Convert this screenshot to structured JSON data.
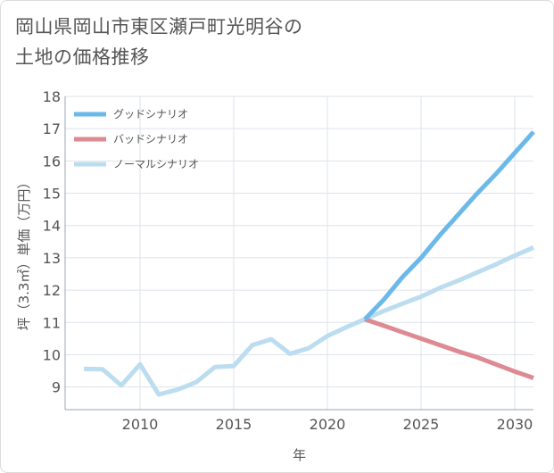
{
  "chart_data": {
    "type": "line",
    "title": "岡山県岡山市東区瀬戸町光明谷の土地の価格推移",
    "xlabel": "年",
    "ylabel": "坪（3.3㎡）単価（万円）",
    "xlim": [
      2006,
      2031
    ],
    "ylim": [
      8.3,
      18
    ],
    "xticks": [
      2010,
      2015,
      2020,
      2025,
      2030
    ],
    "yticks": [
      9,
      10,
      11,
      12,
      13,
      14,
      15,
      16,
      17,
      18
    ],
    "grid": true,
    "legend_position": "top-left",
    "series": [
      {
        "name": "グッドシナリオ",
        "color": "#6bb9ea",
        "x": [
          2022,
          2023,
          2024,
          2025,
          2026,
          2027,
          2028,
          2029,
          2030,
          2031
        ],
        "y": [
          11.1,
          11.7,
          12.4,
          13.0,
          13.7,
          14.35,
          15.0,
          15.6,
          16.25,
          16.9
        ]
      },
      {
        "name": "バッドシナリオ",
        "color": "#de8a92",
        "x": [
          2022,
          2023,
          2024,
          2025,
          2026,
          2027,
          2028,
          2029,
          2030,
          2031
        ],
        "y": [
          11.1,
          10.9,
          10.7,
          10.5,
          10.3,
          10.1,
          9.92,
          9.7,
          9.48,
          9.28
        ]
      },
      {
        "name": "ノーマルシナリオ",
        "color": "#bcdcef",
        "x": [
          2007,
          2008,
          2009,
          2010,
          2011,
          2012,
          2013,
          2014,
          2015,
          2016,
          2017,
          2018,
          2019,
          2020,
          2021,
          2022,
          2023,
          2024,
          2025,
          2026,
          2027,
          2028,
          2029,
          2030,
          2031
        ],
        "y": [
          9.56,
          9.55,
          9.05,
          9.7,
          8.77,
          8.92,
          9.15,
          9.62,
          9.65,
          10.3,
          10.48,
          10.03,
          10.2,
          10.58,
          10.85,
          11.1,
          11.35,
          11.58,
          11.8,
          12.07,
          12.3,
          12.55,
          12.8,
          13.07,
          13.32
        ]
      }
    ]
  }
}
